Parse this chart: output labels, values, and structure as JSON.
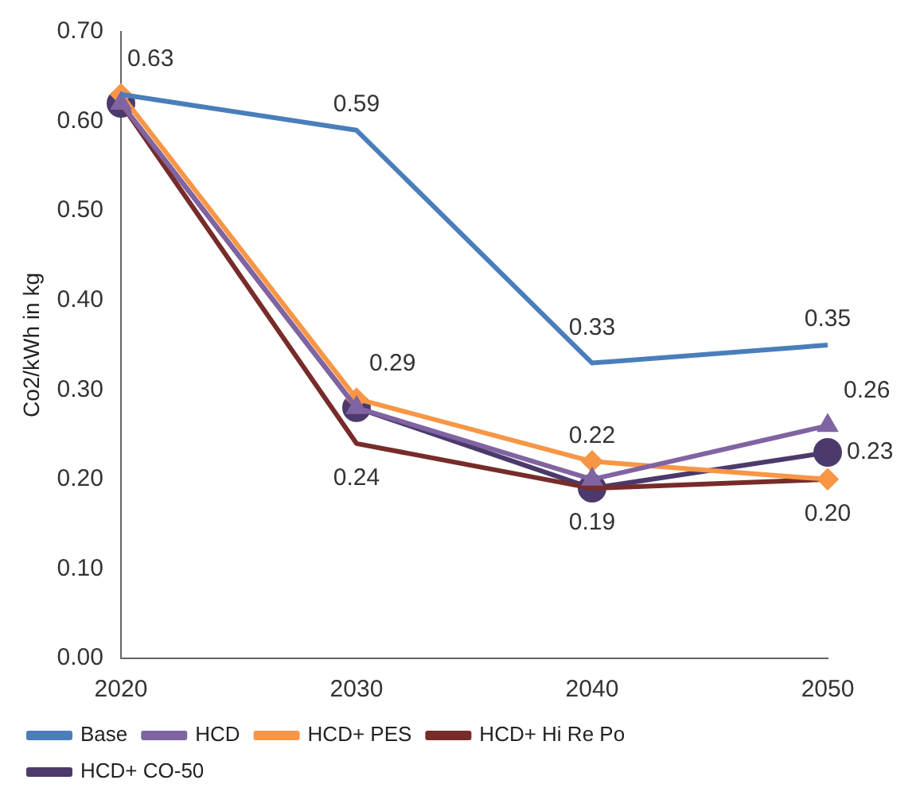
{
  "chart_data": {
    "type": "line",
    "ylabel": "Co2/kWh in kg",
    "categories": [
      "2020",
      "2030",
      "2040",
      "2050"
    ],
    "ylim": [
      0,
      0.7
    ],
    "yticks": [
      {
        "value": 0,
        "label": "0.00"
      },
      {
        "value": 0.1,
        "label": "0.10"
      },
      {
        "value": 0.2,
        "label": "0.20"
      },
      {
        "value": 0.3,
        "label": "0.30"
      },
      {
        "value": 0.4,
        "label": "0.40"
      },
      {
        "value": 0.5,
        "label": "0.50"
      },
      {
        "value": 0.6,
        "label": "0.60"
      },
      {
        "value": 0.7,
        "label": "0.70"
      }
    ],
    "grid": false,
    "legend": "bottom",
    "line_style": "solid",
    "series": [
      {
        "name": "Base",
        "color": "#4a7ebb",
        "marker": "none",
        "values": [
          0.63,
          0.59,
          0.33,
          0.35
        ],
        "value_labels": [
          "0.63",
          "0.59",
          "0.33",
          "0.35"
        ]
      },
      {
        "name": "HCD",
        "color": "#8064a2",
        "marker": "triangle",
        "values": [
          0.62,
          0.28,
          0.2,
          0.26
        ],
        "value_labels": [
          null,
          null,
          null,
          "0.26"
        ]
      },
      {
        "name": "HCD+ PES",
        "color": "#f79646",
        "marker": "diamond",
        "values": [
          0.63,
          0.29,
          0.22,
          0.2
        ],
        "value_labels": [
          null,
          "0.29",
          "0.22",
          null
        ]
      },
      {
        "name": "HCD+ Hi Re Po",
        "color": "#772c2a",
        "marker": "none",
        "values": [
          0.62,
          0.24,
          0.19,
          0.2
        ],
        "value_labels": [
          null,
          "0.24",
          null,
          "0.20"
        ]
      },
      {
        "name": "HCD+ CO-50",
        "color": "#4b3a6b",
        "marker": "circle",
        "values": [
          0.62,
          0.28,
          0.19,
          0.23
        ],
        "value_labels": [
          null,
          null,
          "0.19",
          "0.23"
        ]
      }
    ]
  }
}
